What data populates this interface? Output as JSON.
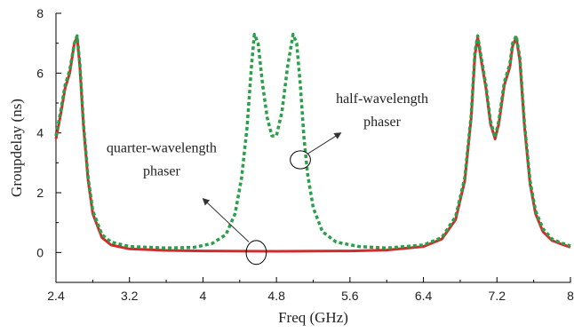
{
  "chart_data": {
    "type": "line",
    "xlabel": "Freq (GHz)",
    "ylabel": "Groupdelay (ns)",
    "xlim": [
      2.4,
      8.0
    ],
    "ylim": [
      -1,
      8
    ],
    "x_ticks": [
      2.4,
      3.2,
      4.0,
      4.8,
      5.6,
      6.4,
      7.2,
      8.0
    ],
    "x_tick_labels": [
      "2.4",
      "3.2",
      "4",
      "4.8",
      "5.6",
      "6.4",
      "7.2",
      "8"
    ],
    "y_ticks": [
      0,
      2,
      4,
      6,
      8
    ],
    "y_tick_labels": [
      "0",
      "2",
      "4",
      "6",
      "8"
    ],
    "grid": false,
    "series": [
      {
        "color": "#d42a2a",
        "style": "solid",
        "points": [
          [
            2.4,
            3.8
          ],
          [
            2.45,
            4.6
          ],
          [
            2.5,
            5.5
          ],
          [
            2.55,
            6.0
          ],
          [
            2.6,
            7.0
          ],
          [
            2.63,
            7.2
          ],
          [
            2.66,
            6.2
          ],
          [
            2.7,
            4.2
          ],
          [
            2.75,
            2.4
          ],
          [
            2.8,
            1.3
          ],
          [
            2.9,
            0.5
          ],
          [
            3.0,
            0.25
          ],
          [
            3.2,
            0.12
          ],
          [
            3.6,
            0.07
          ],
          [
            4.0,
            0.05
          ],
          [
            4.8,
            0.04
          ],
          [
            5.6,
            0.05
          ],
          [
            6.0,
            0.08
          ],
          [
            6.4,
            0.2
          ],
          [
            6.6,
            0.45
          ],
          [
            6.75,
            1.1
          ],
          [
            6.85,
            2.4
          ],
          [
            6.92,
            4.5
          ],
          [
            6.96,
            6.6
          ],
          [
            6.99,
            7.2
          ],
          [
            7.03,
            6.4
          ],
          [
            7.08,
            5.5
          ],
          [
            7.13,
            4.3
          ],
          [
            7.18,
            3.8
          ],
          [
            7.22,
            4.3
          ],
          [
            7.28,
            5.6
          ],
          [
            7.34,
            6.2
          ],
          [
            7.37,
            6.9
          ],
          [
            7.41,
            7.2
          ],
          [
            7.45,
            6.4
          ],
          [
            7.5,
            4.2
          ],
          [
            7.56,
            2.3
          ],
          [
            7.62,
            1.3
          ],
          [
            7.7,
            0.7
          ],
          [
            7.8,
            0.4
          ],
          [
            7.9,
            0.28
          ],
          [
            8.0,
            0.18
          ]
        ]
      },
      {
        "color": "#2aa04a",
        "style": "dashed",
        "points": [
          [
            2.4,
            3.9
          ],
          [
            2.45,
            4.7
          ],
          [
            2.5,
            5.6
          ],
          [
            2.55,
            6.1
          ],
          [
            2.6,
            7.0
          ],
          [
            2.63,
            7.25
          ],
          [
            2.66,
            6.3
          ],
          [
            2.7,
            4.3
          ],
          [
            2.75,
            2.5
          ],
          [
            2.8,
            1.4
          ],
          [
            2.9,
            0.6
          ],
          [
            3.0,
            0.35
          ],
          [
            3.2,
            0.2
          ],
          [
            3.6,
            0.15
          ],
          [
            3.9,
            0.17
          ],
          [
            4.1,
            0.3
          ],
          [
            4.25,
            0.6
          ],
          [
            4.35,
            1.3
          ],
          [
            4.42,
            2.5
          ],
          [
            4.48,
            4.2
          ],
          [
            4.53,
            6.3
          ],
          [
            4.56,
            7.3
          ],
          [
            4.6,
            7.0
          ],
          [
            4.65,
            5.6
          ],
          [
            4.7,
            4.5
          ],
          [
            4.75,
            3.9
          ],
          [
            4.8,
            3.9
          ],
          [
            4.86,
            4.7
          ],
          [
            4.92,
            6.2
          ],
          [
            4.98,
            7.3
          ],
          [
            5.02,
            7.0
          ],
          [
            5.06,
            5.6
          ],
          [
            5.1,
            3.8
          ],
          [
            5.14,
            2.6
          ],
          [
            5.2,
            1.5
          ],
          [
            5.3,
            0.7
          ],
          [
            5.45,
            0.35
          ],
          [
            5.7,
            0.2
          ],
          [
            6.0,
            0.15
          ],
          [
            6.4,
            0.25
          ],
          [
            6.6,
            0.5
          ],
          [
            6.75,
            1.2
          ],
          [
            6.85,
            2.5
          ],
          [
            6.92,
            4.6
          ],
          [
            6.96,
            6.7
          ],
          [
            6.99,
            7.25
          ],
          [
            7.03,
            6.5
          ],
          [
            7.08,
            5.6
          ],
          [
            7.13,
            4.4
          ],
          [
            7.18,
            3.85
          ],
          [
            7.22,
            4.4
          ],
          [
            7.28,
            5.7
          ],
          [
            7.34,
            6.3
          ],
          [
            7.37,
            7.0
          ],
          [
            7.41,
            7.25
          ],
          [
            7.45,
            6.5
          ],
          [
            7.5,
            4.3
          ],
          [
            7.56,
            2.4
          ],
          [
            7.62,
            1.4
          ],
          [
            7.7,
            0.8
          ],
          [
            7.8,
            0.45
          ],
          [
            7.9,
            0.32
          ],
          [
            8.0,
            0.22
          ]
        ]
      }
    ],
    "annotations": [
      {
        "lines": [
          "half-wavelength",
          "phaser"
        ],
        "text_x": 5.95,
        "text_y": 5.0,
        "ellipse_cx": 5.06,
        "ellipse_cy": 3.1,
        "ellipse_rx": 0.11,
        "ellipse_ry": 0.3,
        "arrow_from": [
          5.14,
          3.3
        ],
        "arrow_to": [
          5.5,
          4.0
        ]
      },
      {
        "lines": [
          "quarter-wavelength",
          "phaser"
        ],
        "text_x": 3.55,
        "text_y": 3.35,
        "ellipse_cx": 4.58,
        "ellipse_cy": 0.0,
        "ellipse_rx": 0.11,
        "ellipse_ry": 0.4,
        "arrow_from": [
          4.5,
          0.35
        ],
        "arrow_to": [
          4.0,
          1.8
        ]
      }
    ]
  }
}
